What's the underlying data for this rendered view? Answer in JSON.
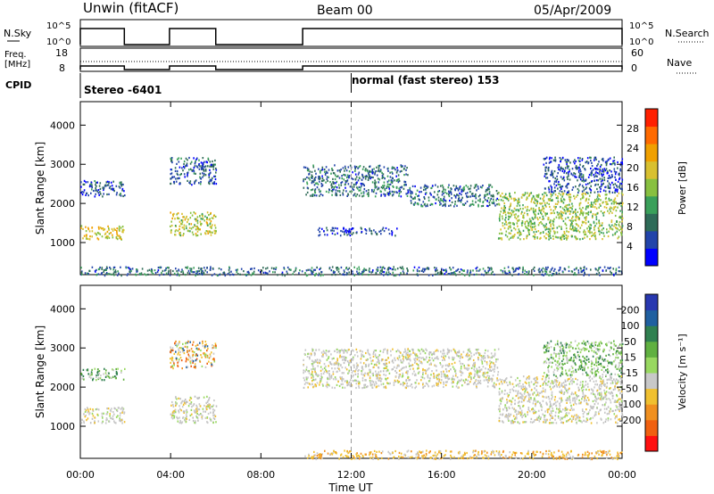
{
  "header": {
    "station": "Unwin (fitACF)",
    "beam": "Beam 00",
    "date": "05/Apr/2009"
  },
  "panels": {
    "nsky_label": "N.Sky",
    "nsearch_label": "N.Search",
    "nsky_ticks": [
      "10^5",
      "10^0"
    ],
    "nsearch_ticks": [
      "10^5",
      "10^0"
    ],
    "freq_label_1": "Freq.",
    "freq_label_2": "[MHz]",
    "freq_ticks": [
      "18",
      "8"
    ],
    "nave_label": "Nave",
    "nave_ticks": [
      "60",
      "0"
    ],
    "cpid_label": "CPID",
    "cpid_segments": [
      {
        "label": "Stereo -6401",
        "start_hour": 0
      },
      {
        "label": "normal (fast stereo) 153",
        "start_hour": 12.0
      }
    ]
  },
  "chart_data": [
    {
      "type": "heatmap",
      "name": "power",
      "xlabel": "Time UT",
      "ylabel": "Slant Range [km]",
      "xlim": [
        0,
        24
      ],
      "ylim": [
        180,
        4600
      ],
      "x_ticks": [
        "00:00",
        "04:00",
        "08:00",
        "12:00",
        "16:00",
        "20:00",
        "00:00"
      ],
      "x_tick_hours": [
        0,
        4,
        8,
        12,
        16,
        20,
        24
      ],
      "y_ticks": [
        1000,
        2000,
        3000,
        4000
      ],
      "colorbar": {
        "label": "Power [dB]",
        "ticks": [
          "4",
          "8",
          "12",
          "16",
          "20",
          "24",
          "28"
        ],
        "tick_values": [
          4,
          8,
          12,
          16,
          20,
          24,
          28
        ],
        "range": [
          0,
          32
        ],
        "colors": [
          "#0000ff",
          "#2244aa",
          "#2f6b58",
          "#3aa05a",
          "#88c040",
          "#d8c030",
          "#f0a000",
          "#ff6a00",
          "#ff2000"
        ]
      },
      "data_gaps_hours": [
        [
          1.95,
          3.95
        ],
        [
          6.0,
          9.85
        ]
      ],
      "scatter_regions": [
        {
          "t0": 0.0,
          "t1": 1.95,
          "r0": 2200,
          "r1": 2600,
          "intensity": 6
        },
        {
          "t0": 0.0,
          "t1": 1.95,
          "r0": 1100,
          "r1": 1450,
          "intensity": 20
        },
        {
          "t0": 3.95,
          "t1": 6.0,
          "r0": 2500,
          "r1": 3200,
          "intensity": 7
        },
        {
          "t0": 3.95,
          "t1": 6.0,
          "r0": 1200,
          "r1": 1800,
          "intensity": 18
        },
        {
          "t0": 9.85,
          "t1": 14.5,
          "r0": 2200,
          "r1": 3000,
          "intensity": 8
        },
        {
          "t0": 14.5,
          "t1": 18.5,
          "r0": 1950,
          "r1": 2500,
          "intensity": 8
        },
        {
          "t0": 10.5,
          "t1": 14.0,
          "r0": 1200,
          "r1": 1400,
          "intensity": 5
        },
        {
          "t0": 18.5,
          "t1": 24.0,
          "r0": 1100,
          "r1": 2300,
          "intensity": 16
        },
        {
          "t0": 20.5,
          "t1": 24.0,
          "r0": 2300,
          "r1": 3200,
          "intensity": 6
        },
        {
          "t0": 0.0,
          "t1": 24.0,
          "r0": 180,
          "r1": 400,
          "intensity": 8
        }
      ]
    },
    {
      "type": "heatmap",
      "name": "velocity",
      "xlabel": "Time UT",
      "ylabel": "Slant Range [km]",
      "xlim": [
        0,
        24
      ],
      "ylim": [
        180,
        4600
      ],
      "x_ticks": [
        "00:00",
        "04:00",
        "08:00",
        "12:00",
        "16:00",
        "20:00",
        "00:00"
      ],
      "x_tick_hours": [
        0,
        4,
        8,
        12,
        16,
        20,
        24
      ],
      "y_ticks": [
        1000,
        2000,
        3000,
        4000
      ],
      "colorbar": {
        "label": "Velocity [m s⁻¹]",
        "ticks": [
          "200",
          "100",
          "50",
          "15",
          "-15",
          "-50",
          "-100",
          "-200"
        ],
        "colors": [
          "#2838b0",
          "#2060a0",
          "#308050",
          "#60b040",
          "#98d860",
          "#c8c8c8",
          "#f0c030",
          "#f09020",
          "#f06010",
          "#ff1010"
        ]
      },
      "scatter_regions": [
        {
          "t0": 0.0,
          "t1": 1.95,
          "r0": 1100,
          "r1": 1500,
          "tone": "grey"
        },
        {
          "t0": 0.0,
          "t1": 1.95,
          "r0": 2200,
          "r1": 2500,
          "tone": "green"
        },
        {
          "t0": 3.95,
          "t1": 6.0,
          "r0": 1100,
          "r1": 1800,
          "tone": "grey"
        },
        {
          "t0": 3.95,
          "t1": 6.0,
          "r0": 2500,
          "r1": 3200,
          "tone": "mixed"
        },
        {
          "t0": 9.85,
          "t1": 18.5,
          "r0": 2000,
          "r1": 3000,
          "tone": "grey"
        },
        {
          "t0": 18.5,
          "t1": 24.0,
          "r0": 1100,
          "r1": 2300,
          "tone": "grey"
        },
        {
          "t0": 20.5,
          "t1": 24.0,
          "r0": 2300,
          "r1": 3200,
          "tone": "green"
        },
        {
          "t0": 9.85,
          "t1": 24.0,
          "r0": 180,
          "r1": 400,
          "tone": "orange"
        }
      ]
    }
  ],
  "reference_time_hours": 12.0
}
